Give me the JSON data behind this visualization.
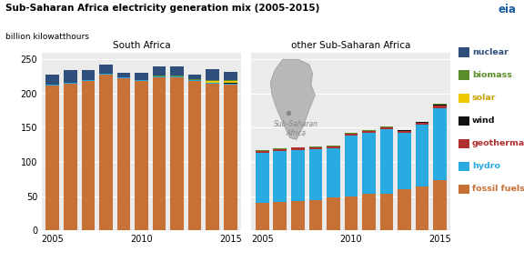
{
  "title": "Sub-Saharan Africa electricity generation mix (2005-2015)",
  "subtitle": "billion kilowatthours",
  "years": [
    2005,
    2006,
    2007,
    2008,
    2009,
    2010,
    2011,
    2012,
    2013,
    2014,
    2015
  ],
  "south_africa": {
    "fossil_fuels": [
      212,
      214,
      218,
      228,
      222,
      218,
      224,
      224,
      218,
      214,
      213
    ],
    "hydro": [
      1,
      1,
      1,
      1,
      1,
      1,
      1,
      1,
      1,
      1,
      1
    ],
    "geothermal": [
      0,
      0,
      0,
      0,
      0,
      0,
      0,
      0,
      0,
      0,
      0
    ],
    "wind": [
      0,
      0,
      0,
      0,
      0,
      0,
      0,
      0,
      0,
      1,
      2
    ],
    "solar": [
      0,
      0,
      0,
      0,
      0,
      0,
      0,
      0,
      1,
      2,
      2
    ],
    "biomass": [
      0,
      0,
      0,
      0,
      0,
      1,
      1,
      1,
      1,
      1,
      1
    ],
    "nuclear": [
      14,
      19,
      15,
      13,
      7,
      10,
      14,
      14,
      7,
      17,
      12
    ]
  },
  "other_ssa": {
    "fossil_fuels": [
      41,
      42,
      43,
      45,
      48,
      50,
      54,
      54,
      60,
      64,
      74
    ],
    "hydro": [
      72,
      74,
      75,
      74,
      72,
      88,
      88,
      94,
      82,
      90,
      104
    ],
    "geothermal": [
      3,
      3,
      3,
      3,
      3,
      3,
      3,
      3,
      3,
      3,
      4
    ],
    "wind": [
      0,
      0,
      0,
      0,
      0,
      0,
      0,
      0,
      1,
      1,
      2
    ],
    "solar": [
      0,
      0,
      0,
      0,
      0,
      0,
      0,
      0,
      0,
      0,
      0
    ],
    "biomass": [
      1,
      1,
      1,
      1,
      1,
      1,
      1,
      1,
      1,
      1,
      1
    ],
    "nuclear": [
      0,
      0,
      0,
      0,
      0,
      0,
      0,
      0,
      0,
      0,
      0
    ]
  },
  "colors": {
    "fossil_fuels": "#C87137",
    "hydro": "#29ABE2",
    "geothermal": "#B03030",
    "wind": "#111111",
    "solar": "#F0C800",
    "biomass": "#5B8C2A",
    "nuclear": "#2E4F7C"
  },
  "legend_text_colors": {
    "nuclear": "#2E4F7C",
    "biomass": "#5B8C2A",
    "solar": "#C8A000",
    "wind": "#111111",
    "geothermal": "#B03030",
    "hydro": "#29ABE2",
    "fossil_fuels": "#C87137"
  },
  "legend_items": [
    "nuclear",
    "biomass",
    "solar",
    "wind",
    "geothermal",
    "hydro",
    "fossil_fuels"
  ],
  "legend_display": {
    "nuclear": "nuclear",
    "biomass": "biomass",
    "solar": "solar",
    "wind": "wind",
    "geothermal": "geothermal",
    "hydro": "hydro",
    "fossil_fuels": "fossil fuels"
  },
  "ylim": [
    0,
    260
  ],
  "yticks": [
    0,
    50,
    100,
    150,
    200,
    250
  ],
  "sa_title": "South Africa",
  "ssa_title": "other Sub-Saharan Africa",
  "bg_color": "#FFFFFF",
  "plot_bg_color": "#EBEBEB",
  "stack_order": [
    "fossil_fuels",
    "hydro",
    "geothermal",
    "wind",
    "solar",
    "biomass",
    "nuclear"
  ]
}
